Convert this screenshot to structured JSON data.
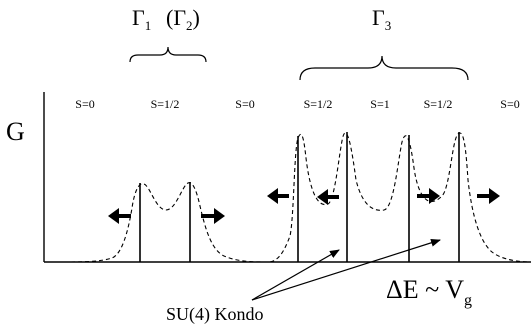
{
  "gamma_labels": {
    "gamma1": "Γ",
    "gamma1_sub": "1",
    "gamma2_open": "(Γ",
    "gamma2_sub": "2",
    "gamma2_close": ")",
    "gamma3": "Γ",
    "gamma3_sub": "3"
  },
  "axes": {
    "y_label": "G",
    "x_label_main": "ΔE ~ V",
    "x_label_sub": "g"
  },
  "spin_labels": {
    "left": [
      "S=0",
      "S=1/2",
      "S=0"
    ],
    "right": [
      "S=1/2",
      "S=1",
      "S=1/2",
      "S=0"
    ]
  },
  "annotation": {
    "kondo": "SU(4) Kondo"
  },
  "colors": {
    "ink": "#000000",
    "background": "#ffffff"
  }
}
